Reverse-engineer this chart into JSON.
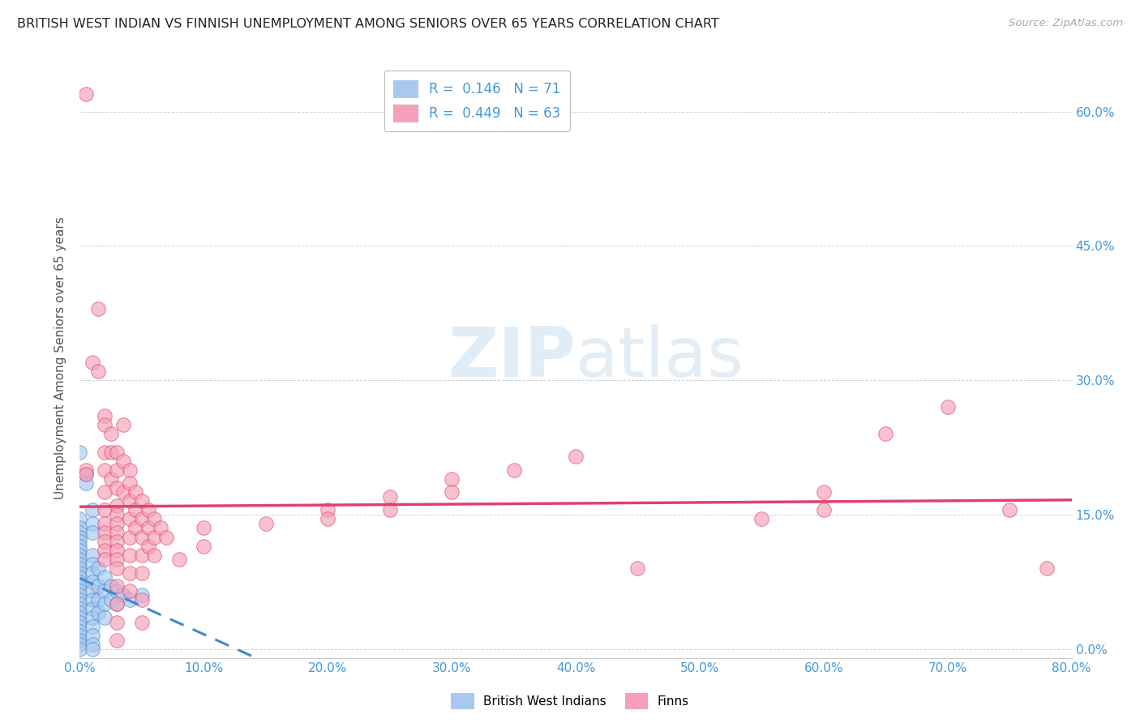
{
  "title": "BRITISH WEST INDIAN VS FINNISH UNEMPLOYMENT AMONG SENIORS OVER 65 YEARS CORRELATION CHART",
  "source": "Source: ZipAtlas.com",
  "ylabel": "Unemployment Among Seniors over 65 years",
  "ytick_labels": [
    "0.0%",
    "15.0%",
    "30.0%",
    "45.0%",
    "60.0%"
  ],
  "ytick_values": [
    0.0,
    0.15,
    0.3,
    0.45,
    0.6
  ],
  "xlim": [
    0.0,
    0.8
  ],
  "ylim": [
    -0.01,
    0.66
  ],
  "color_blue": "#A8C8F0",
  "color_pink": "#F5A0B8",
  "color_line_blue": "#4488CC",
  "color_line_pink": "#E04070",
  "color_axis_labels": "#4499DD",
  "watermark_color": "#C8DEF0",
  "bwi_points": [
    [
      0.0,
      0.22
    ],
    [
      0.005,
      0.195
    ],
    [
      0.005,
      0.185
    ],
    [
      0.01,
      0.155
    ],
    [
      0.01,
      0.14
    ],
    [
      0.01,
      0.13
    ],
    [
      0.0,
      0.145
    ],
    [
      0.0,
      0.135
    ],
    [
      0.0,
      0.13
    ],
    [
      0.0,
      0.125
    ],
    [
      0.0,
      0.12
    ],
    [
      0.0,
      0.115
    ],
    [
      0.0,
      0.11
    ],
    [
      0.0,
      0.105
    ],
    [
      0.0,
      0.1
    ],
    [
      0.0,
      0.095
    ],
    [
      0.0,
      0.09
    ],
    [
      0.0,
      0.085
    ],
    [
      0.0,
      0.08
    ],
    [
      0.0,
      0.075
    ],
    [
      0.0,
      0.07
    ],
    [
      0.0,
      0.065
    ],
    [
      0.0,
      0.06
    ],
    [
      0.0,
      0.055
    ],
    [
      0.0,
      0.05
    ],
    [
      0.0,
      0.045
    ],
    [
      0.0,
      0.04
    ],
    [
      0.0,
      0.035
    ],
    [
      0.0,
      0.03
    ],
    [
      0.0,
      0.025
    ],
    [
      0.0,
      0.02
    ],
    [
      0.0,
      0.015
    ],
    [
      0.0,
      0.01
    ],
    [
      0.0,
      0.005
    ],
    [
      0.0,
      0.0
    ],
    [
      0.01,
      0.105
    ],
    [
      0.01,
      0.095
    ],
    [
      0.01,
      0.085
    ],
    [
      0.01,
      0.075
    ],
    [
      0.01,
      0.065
    ],
    [
      0.01,
      0.055
    ],
    [
      0.01,
      0.045
    ],
    [
      0.01,
      0.035
    ],
    [
      0.01,
      0.025
    ],
    [
      0.01,
      0.015
    ],
    [
      0.01,
      0.005
    ],
    [
      0.01,
      0.0
    ],
    [
      0.015,
      0.09
    ],
    [
      0.015,
      0.07
    ],
    [
      0.015,
      0.055
    ],
    [
      0.015,
      0.04
    ],
    [
      0.02,
      0.08
    ],
    [
      0.02,
      0.065
    ],
    [
      0.02,
      0.05
    ],
    [
      0.02,
      0.035
    ],
    [
      0.025,
      0.07
    ],
    [
      0.025,
      0.055
    ],
    [
      0.03,
      0.065
    ],
    [
      0.03,
      0.05
    ],
    [
      0.035,
      0.06
    ],
    [
      0.04,
      0.055
    ],
    [
      0.05,
      0.06
    ]
  ],
  "finn_points": [
    [
      0.005,
      0.62
    ],
    [
      0.005,
      0.2
    ],
    [
      0.005,
      0.195
    ],
    [
      0.01,
      0.32
    ],
    [
      0.015,
      0.38
    ],
    [
      0.015,
      0.31
    ],
    [
      0.02,
      0.26
    ],
    [
      0.02,
      0.25
    ],
    [
      0.02,
      0.22
    ],
    [
      0.02,
      0.2
    ],
    [
      0.02,
      0.175
    ],
    [
      0.02,
      0.155
    ],
    [
      0.02,
      0.14
    ],
    [
      0.02,
      0.13
    ],
    [
      0.02,
      0.12
    ],
    [
      0.02,
      0.11
    ],
    [
      0.02,
      0.1
    ],
    [
      0.025,
      0.24
    ],
    [
      0.025,
      0.22
    ],
    [
      0.025,
      0.19
    ],
    [
      0.03,
      0.22
    ],
    [
      0.03,
      0.2
    ],
    [
      0.03,
      0.18
    ],
    [
      0.03,
      0.16
    ],
    [
      0.03,
      0.15
    ],
    [
      0.03,
      0.14
    ],
    [
      0.03,
      0.13
    ],
    [
      0.03,
      0.12
    ],
    [
      0.03,
      0.11
    ],
    [
      0.03,
      0.1
    ],
    [
      0.03,
      0.09
    ],
    [
      0.03,
      0.07
    ],
    [
      0.03,
      0.05
    ],
    [
      0.03,
      0.03
    ],
    [
      0.03,
      0.01
    ],
    [
      0.035,
      0.25
    ],
    [
      0.035,
      0.21
    ],
    [
      0.035,
      0.175
    ],
    [
      0.04,
      0.2
    ],
    [
      0.04,
      0.185
    ],
    [
      0.04,
      0.165
    ],
    [
      0.04,
      0.145
    ],
    [
      0.04,
      0.125
    ],
    [
      0.04,
      0.105
    ],
    [
      0.04,
      0.085
    ],
    [
      0.04,
      0.065
    ],
    [
      0.045,
      0.175
    ],
    [
      0.045,
      0.155
    ],
    [
      0.045,
      0.135
    ],
    [
      0.05,
      0.165
    ],
    [
      0.05,
      0.145
    ],
    [
      0.05,
      0.125
    ],
    [
      0.05,
      0.105
    ],
    [
      0.05,
      0.085
    ],
    [
      0.05,
      0.055
    ],
    [
      0.05,
      0.03
    ],
    [
      0.055,
      0.155
    ],
    [
      0.055,
      0.135
    ],
    [
      0.055,
      0.115
    ],
    [
      0.06,
      0.145
    ],
    [
      0.06,
      0.125
    ],
    [
      0.06,
      0.105
    ],
    [
      0.065,
      0.135
    ],
    [
      0.07,
      0.125
    ],
    [
      0.08,
      0.1
    ],
    [
      0.1,
      0.135
    ],
    [
      0.1,
      0.115
    ],
    [
      0.15,
      0.14
    ],
    [
      0.2,
      0.155
    ],
    [
      0.2,
      0.145
    ],
    [
      0.25,
      0.17
    ],
    [
      0.25,
      0.155
    ],
    [
      0.3,
      0.19
    ],
    [
      0.3,
      0.175
    ],
    [
      0.35,
      0.2
    ],
    [
      0.4,
      0.215
    ],
    [
      0.45,
      0.09
    ],
    [
      0.55,
      0.145
    ],
    [
      0.6,
      0.175
    ],
    [
      0.6,
      0.155
    ],
    [
      0.65,
      0.24
    ],
    [
      0.7,
      0.27
    ],
    [
      0.75,
      0.155
    ],
    [
      0.78,
      0.09
    ]
  ]
}
